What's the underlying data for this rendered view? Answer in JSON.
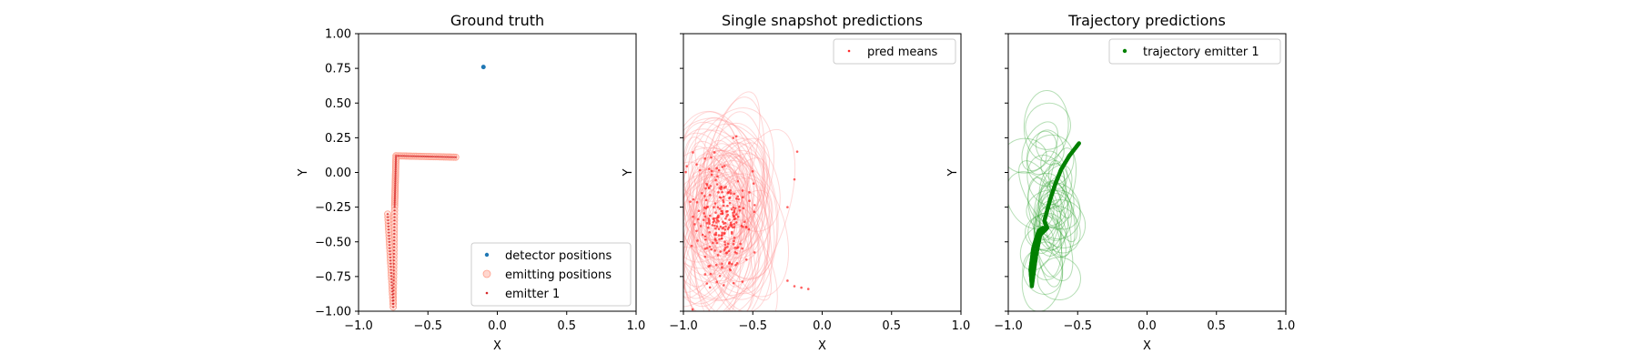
{
  "chart_data": [
    {
      "type": "scatter",
      "title": "Ground truth",
      "xlabel": "X",
      "ylabel": "Y",
      "xlim": [
        -1.0,
        1.0
      ],
      "ylim": [
        -1.0,
        1.0
      ],
      "xticks": [
        "−1.0",
        "−0.5",
        "0.0",
        "0.5",
        "1.0"
      ],
      "yticks": [
        "1.00",
        "0.75",
        "0.50",
        "0.25",
        "0.00",
        "−0.25",
        "−0.50",
        "−0.75",
        "−1.00"
      ],
      "show_y_ticklabels": true,
      "legend_position": "lower-right",
      "series": [
        {
          "name": "detector positions",
          "color": "#1f77b4",
          "marker": "dot",
          "points": [
            [
              -0.1,
              0.76
            ]
          ]
        },
        {
          "name": "emitting positions",
          "color": "#ff9f8c",
          "marker": "hollow-circle",
          "path": [
            [
              -0.3,
              0.11
            ],
            [
              -0.73,
              0.12
            ],
            [
              -0.74,
              -0.25
            ],
            [
              -0.75,
              -0.97
            ],
            [
              -0.79,
              -0.3
            ]
          ]
        },
        {
          "name": "emitter 1",
          "color": "#d62728",
          "marker": "small-dot",
          "path": [
            [
              -0.3,
              0.11
            ],
            [
              -0.73,
              0.12
            ],
            [
              -0.74,
              -0.25
            ],
            [
              -0.75,
              -0.97
            ],
            [
              -0.79,
              -0.3
            ]
          ]
        }
      ]
    },
    {
      "type": "scatter",
      "title": "Single snapshot predictions",
      "xlabel": "X",
      "ylabel": "Y",
      "xlim": [
        -1.0,
        1.0
      ],
      "ylim": [
        -1.0,
        1.0
      ],
      "xticks": [
        "−1.0",
        "−0.5",
        "0.0",
        "0.5",
        "1.0"
      ],
      "yticks": [],
      "show_y_ticklabels": false,
      "legend_position": "upper-right",
      "series": [
        {
          "name": "pred means",
          "color": "#ff2a2a",
          "marker": "small-dot",
          "cluster": {
            "center": [
              -0.72,
              -0.35
            ],
            "spread": [
              0.1,
              0.22
            ],
            "count": 240
          },
          "outliers": [
            [
              -0.2,
              -0.82
            ],
            [
              -0.15,
              -0.83
            ],
            [
              -0.1,
              -0.84
            ],
            [
              -0.25,
              -0.78
            ],
            [
              -0.18,
              0.15
            ],
            [
              -0.25,
              -0.25
            ],
            [
              -0.2,
              -0.05
            ]
          ]
        }
      ],
      "ellipses": {
        "color": "#ff9090",
        "count": 70,
        "center": [
          -0.7,
          -0.3
        ],
        "radius": [
          0.22,
          0.45
        ]
      }
    },
    {
      "type": "line",
      "title": "Trajectory predictions",
      "xlabel": "X",
      "ylabel": "Y",
      "xlim": [
        -1.0,
        1.0
      ],
      "ylim": [
        -1.0,
        1.0
      ],
      "xticks": [
        "−1.0",
        "−0.5",
        "0.0",
        "0.5",
        "1.0"
      ],
      "yticks": [],
      "show_y_ticklabels": false,
      "legend_position": "upper-right",
      "series": [
        {
          "name": "trajectory emitter 1",
          "color": "#008000",
          "marker": "dot",
          "path": [
            [
              -0.49,
              0.21
            ],
            [
              -0.56,
              0.12
            ],
            [
              -0.62,
              0.02
            ],
            [
              -0.66,
              -0.08
            ],
            [
              -0.7,
              -0.2
            ],
            [
              -0.74,
              -0.35
            ],
            [
              -0.72,
              -0.4
            ],
            [
              -0.77,
              -0.45
            ],
            [
              -0.8,
              -0.6
            ],
            [
              -0.83,
              -0.82
            ],
            [
              -0.84,
              -0.7
            ],
            [
              -0.82,
              -0.55
            ],
            [
              -0.8,
              -0.48
            ],
            [
              -0.78,
              -0.42
            ],
            [
              -0.75,
              -0.4
            ]
          ]
        }
      ],
      "ellipses": {
        "color": "#2ca02c",
        "count": 40,
        "center": [
          -0.7,
          -0.3
        ],
        "radius": [
          0.12,
          0.2
        ]
      }
    }
  ]
}
